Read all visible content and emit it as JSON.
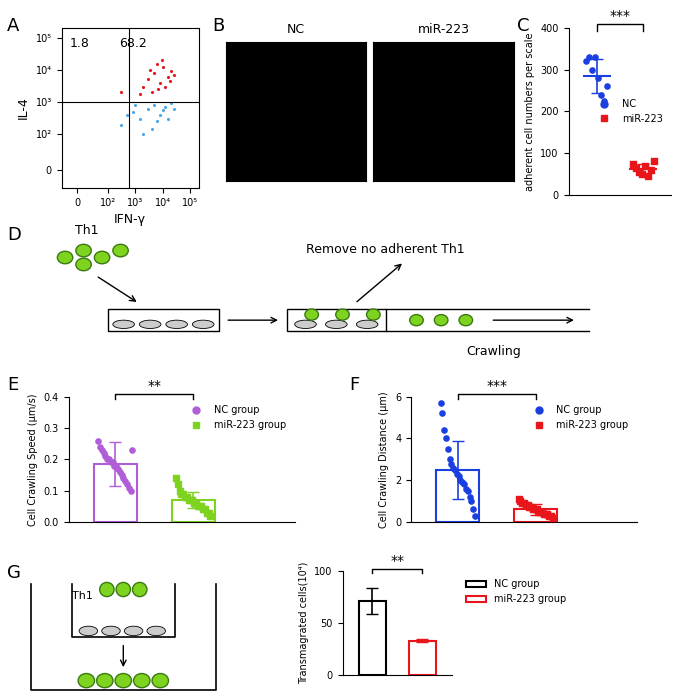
{
  "chart_data": [
    {
      "type": "scatter",
      "panel": "A",
      "xlabel": "IFN-γ",
      "ylabel": "IL-4",
      "log": true,
      "xlim": [
        -50,
        200000
      ],
      "ylim": [
        -50,
        200000
      ],
      "xticks": [
        0,
        {
          "value": 100,
          "label": "10²"
        },
        {
          "value": 1000,
          "label": "10³"
        },
        {
          "value": 10000,
          "label": "10⁴"
        },
        {
          "value": 100000,
          "label": "10⁵"
        }
      ],
      "yticks": [
        0,
        {
          "value": 100,
          "label": "10²"
        },
        {
          "value": 1000,
          "label": "10³"
        },
        {
          "value": 10000,
          "label": "10⁴"
        },
        {
          "value": 100000,
          "label": "10⁵"
        }
      ],
      "gates": {
        "x": 600,
        "y": 1000
      },
      "quadrant_percentages": [
        1.8,
        68.2
      ],
      "series": [
        {
          "color": "#e8141c",
          "marker": "circle",
          "x": [
            2000,
            3000,
            5000,
            8000,
            10000,
            15000,
            20000,
            4000,
            6000,
            12000,
            25000,
            1500,
            7000,
            9000,
            3500,
            18000,
            300
          ],
          "y": [
            3000,
            5000,
            8000,
            4000,
            12000,
            6000,
            9000,
            2000,
            15000,
            3000,
            7000,
            1800,
            2500,
            20000,
            10000,
            4500,
            2000
          ]
        },
        {
          "color": "#4aa8e8",
          "marker": "circle",
          "x": [
            300,
            800,
            1500,
            3000,
            5000,
            8000,
            12000,
            20000,
            2000,
            6000,
            1000,
            15000,
            4000,
            500,
            10000,
            25000
          ],
          "y": [
            200,
            500,
            300,
            600,
            800,
            400,
            700,
            900,
            100,
            250,
            800,
            300,
            150,
            400,
            550,
            600
          ]
        }
      ]
    },
    {
      "type": "dot",
      "panel": "C",
      "ylabel": "adherent cell numbers per scale",
      "ylim": [
        0,
        400
      ],
      "yticks": [
        0,
        100,
        200,
        300,
        400
      ],
      "tick_labels": "y",
      "legend": "center right",
      "significance": "***",
      "series": [
        {
          "name": "NC",
          "color": "#1a3fe0",
          "marker": "circle",
          "mean": 285,
          "error": 40,
          "points": [
            320,
            330,
            300,
            330,
            280,
            240,
            225,
            260
          ]
        },
        {
          "name": "miR-223",
          "color": "#e8161b",
          "marker": "square",
          "mean": 62,
          "error": 12,
          "points": [
            75,
            65,
            55,
            50,
            70,
            45,
            60,
            80
          ]
        }
      ]
    },
    {
      "type": "bar",
      "panel": "E",
      "ylabel": "Cell Crawling Speed (μm/s)",
      "ylim": [
        0,
        0.4
      ],
      "yticks": [
        0.0,
        0.1,
        0.2,
        0.3,
        0.4
      ],
      "tick_labels": "y",
      "legend": "upper right",
      "significance": "**",
      "series": [
        {
          "name": "NC group",
          "color": "#b05ed8",
          "marker": "circle",
          "mean": 0.185,
          "error": 0.07,
          "points": [
            0.26,
            0.24,
            0.23,
            0.22,
            0.21,
            0.2,
            0.2,
            0.19,
            0.19,
            0.18,
            0.18,
            0.17,
            0.16,
            0.15,
            0.14,
            0.13,
            0.12,
            0.11,
            0.1,
            0.23
          ]
        },
        {
          "name": "miR-223 group",
          "color": "#7ed321",
          "marker": "square",
          "mean": 0.07,
          "error": 0.025,
          "points": [
            0.14,
            0.12,
            0.1,
            0.09,
            0.09,
            0.08,
            0.08,
            0.07,
            0.07,
            0.07,
            0.06,
            0.06,
            0.05,
            0.05,
            0.05,
            0.04,
            0.04,
            0.03,
            0.03,
            0.02
          ]
        }
      ]
    },
    {
      "type": "bar",
      "panel": "F",
      "ylabel": "Cell Crawling Distance (μm)",
      "ylim": [
        0,
        6
      ],
      "yticks": [
        0,
        2,
        4,
        6
      ],
      "tick_labels": "y",
      "legend": "upper right",
      "significance": "***",
      "series": [
        {
          "name": "NC group",
          "color": "#1a3fe0",
          "marker": "circle",
          "mean": 2.5,
          "error": 1.4,
          "points": [
            5.7,
            5.2,
            4.4,
            4.0,
            3.5,
            3.0,
            2.8,
            2.6,
            2.5,
            2.3,
            2.2,
            2.0,
            1.9,
            1.8,
            1.6,
            1.5,
            1.2,
            1.0,
            0.6,
            0.3
          ]
        },
        {
          "name": "miR-223 group",
          "color": "#e8161b",
          "marker": "square",
          "mean": 0.6,
          "error": 0.25,
          "points": [
            1.1,
            1.0,
            0.9,
            0.9,
            0.8,
            0.8,
            0.7,
            0.7,
            0.6,
            0.6,
            0.6,
            0.5,
            0.5,
            0.5,
            0.4,
            0.4,
            0.4,
            0.3,
            0.3,
            0.2
          ]
        }
      ]
    },
    {
      "type": "bar",
      "panel": "G",
      "ylabel": "Transmagrated cells(10⁴)",
      "ylim": [
        0,
        100
      ],
      "yticks": [
        0,
        50,
        100
      ],
      "tick_labels": "y",
      "legend": "upper left",
      "significance": "**",
      "series": [
        {
          "name": "NC group",
          "color": "#000000",
          "mean": 71,
          "error": 12
        },
        {
          "name": "miR-223 group",
          "color": "#e8161b",
          "mean": 33,
          "error": 1.5
        }
      ]
    }
  ],
  "images": {
    "panel": "B",
    "titles": [
      "NC",
      "miR-223"
    ]
  },
  "diagrams": [
    {
      "panel": "D",
      "cells": "Th1",
      "step": "Remove no adherent Th1",
      "motion": "Crawling"
    },
    {
      "cells": "Th1"
    }
  ]
}
